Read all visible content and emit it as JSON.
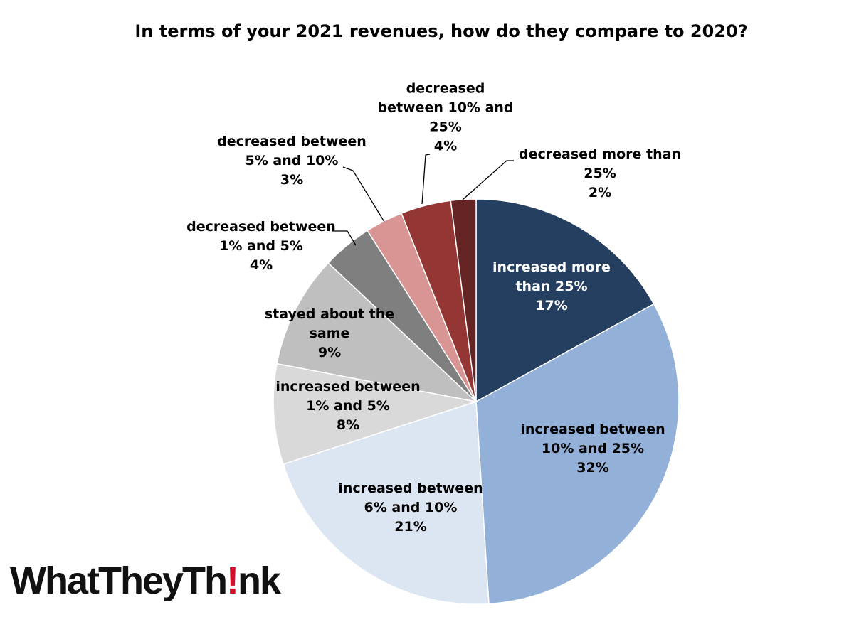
{
  "chart_data": {
    "type": "pie",
    "title": "In terms of your 2021 revenues, how do they compare to 2020?",
    "slices": [
      {
        "label": "increased more than 25%",
        "lines": [
          "increased more",
          "than 25%"
        ],
        "value": 17,
        "value_label": "17%",
        "color": "#253f61",
        "text_color": "#ffffff"
      },
      {
        "label": "increased between 10% and 25%",
        "lines": [
          "increased between",
          "10% and 25%"
        ],
        "value": 32,
        "value_label": "32%",
        "color": "#93b1d8",
        "text_color": "#000000"
      },
      {
        "label": "increased between 6% and 10%",
        "lines": [
          "increased between",
          "6% and 10%"
        ],
        "value": 21,
        "value_label": "21%",
        "color": "#dce6f2",
        "text_color": "#000000"
      },
      {
        "label": "increased between 1% and 5%",
        "lines": [
          "increased between",
          "1% and 5%"
        ],
        "value": 8,
        "value_label": "8%",
        "color": "#d9d9d9",
        "text_color": "#000000"
      },
      {
        "label": "stayed about the same",
        "lines": [
          "stayed about the",
          "same"
        ],
        "value": 9,
        "value_label": "9%",
        "color": "#bfbfbf",
        "text_color": "#000000"
      },
      {
        "label": "decreased between 1% and 5%",
        "lines": [
          "decreased between",
          "1% and 5%"
        ],
        "value": 4,
        "value_label": "4%",
        "color": "#7f7f7f",
        "text_color": "#000000"
      },
      {
        "label": "decreased between 5% and 10%",
        "lines": [
          "decreased between",
          "5% and 10%"
        ],
        "value": 3,
        "value_label": "3%",
        "color": "#d99594",
        "text_color": "#000000"
      },
      {
        "label": "decreased between 10% and 25%",
        "lines": [
          "decreased",
          "between 10% and",
          "25%"
        ],
        "value": 4,
        "value_label": "4%",
        "color": "#943634",
        "text_color": "#000000"
      },
      {
        "label": "decreased more than 25%",
        "lines": [
          "decreased more than",
          "25%"
        ],
        "value": 2,
        "value_label": "2%",
        "color": "#632423",
        "text_color": "#000000"
      }
    ]
  },
  "brand": {
    "logo_prefix": "WhatTheyTh",
    "logo_mark": "!",
    "logo_suffix": "nk"
  }
}
